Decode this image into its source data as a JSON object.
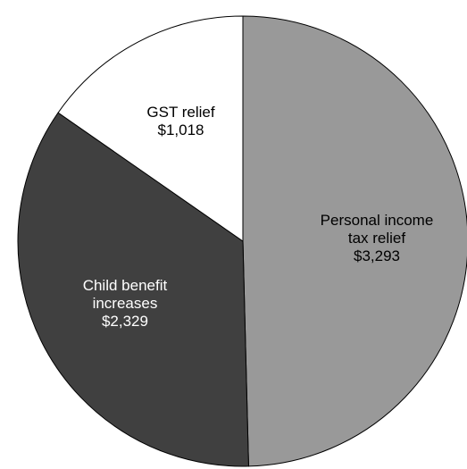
{
  "chart_data": {
    "type": "pie",
    "title": "",
    "slices": [
      {
        "label_lines": [
          "Personal income",
          "tax relief"
        ],
        "value": 3293,
        "value_label": "$3,293",
        "color": "#999999",
        "text_color": "#000000"
      },
      {
        "label_lines": [
          "Child benefit",
          "increases"
        ],
        "value": 2329,
        "value_label": "$2,329",
        "color": "#404040",
        "text_color": "#ffffff"
      },
      {
        "label_lines": [
          "GST relief"
        ],
        "value": 1018,
        "value_label": "$1,018",
        "color": "#ffffff",
        "text_color": "#000000"
      }
    ],
    "start_angle": "12 o'clock",
    "direction": "clockwise",
    "legend": "none"
  }
}
